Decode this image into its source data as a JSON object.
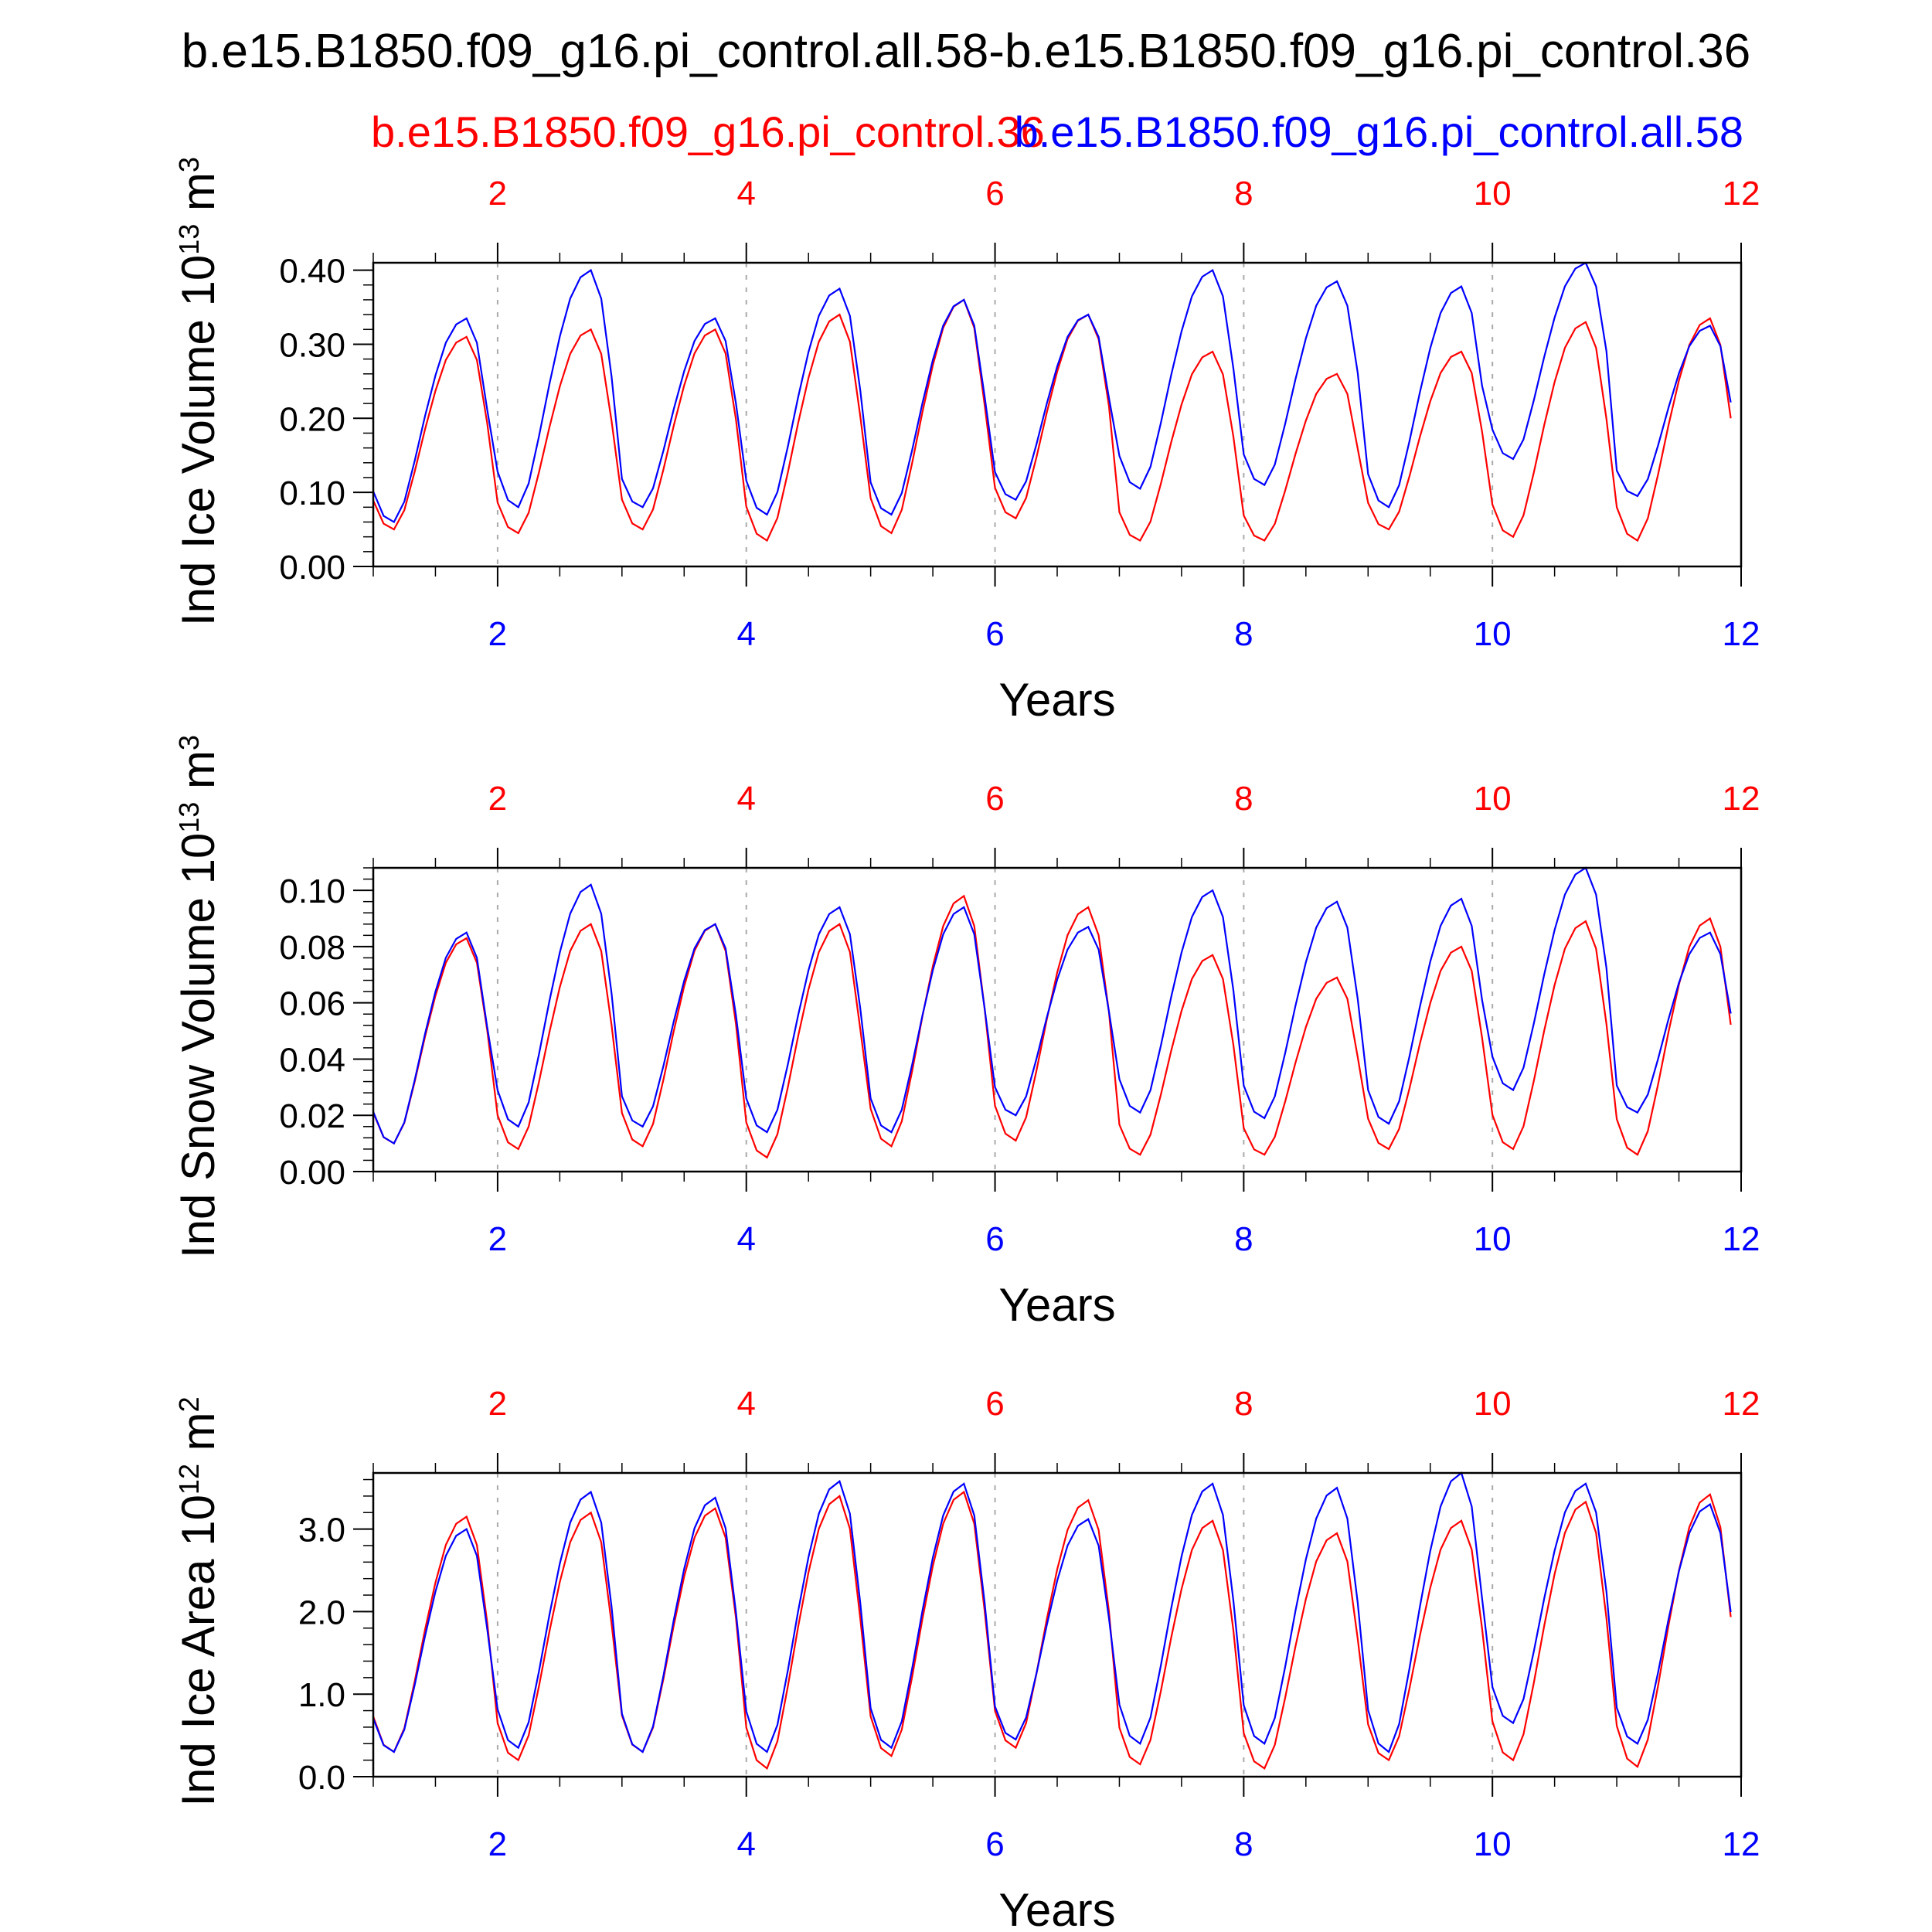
{
  "figure": {
    "title": "b.e15.B1850.f09_g16.pi_control.all.58-b.e15.B1850.f09_g16.pi_control.36",
    "legend_red": "b.e15.B1850.f09_g16.pi_control.36",
    "legend_blue": "b.e15.B1850.f09_g16.pi_control.all.58",
    "colors": {
      "red": "#ff0000",
      "blue": "#0000ff",
      "axis": "#000000",
      "grid": "#aaaaaa"
    }
  },
  "chart_data": [
    {
      "type": "line",
      "ylabel": "Ind Ice Volume 10",
      "ylabel_exp": "13",
      "ylabel_unit": " m",
      "ylabel_unit_exp": "3",
      "xlabel": "Years",
      "xlim": [
        1,
        12
      ],
      "ylim": [
        0,
        0.41
      ],
      "yticks": [
        "0.00",
        "0.10",
        "0.20",
        "0.30",
        "0.40"
      ],
      "ytick_values": [
        0,
        0.1,
        0.2,
        0.3,
        0.4
      ],
      "xticks_top": [
        "2",
        "4",
        "6",
        "8",
        "10",
        "12"
      ],
      "xticks_bottom": [
        "2",
        "4",
        "6",
        "8",
        "10",
        "12"
      ],
      "grid_x": [
        2,
        4,
        6,
        8,
        10
      ],
      "series": [
        {
          "color": "red",
          "amplitude": [
            0.31,
            0.32,
            0.32,
            0.34,
            0.36,
            0.34,
            0.29,
            0.26,
            0.29,
            0.33,
            0.335
          ],
          "minimum": [
            0.05,
            0.045,
            0.05,
            0.035,
            0.045,
            0.065,
            0.035,
            0.035,
            0.05,
            0.04,
            0.035
          ]
        },
        {
          "color": "blue",
          "amplitude": [
            0.335,
            0.4,
            0.335,
            0.375,
            0.36,
            0.34,
            0.4,
            0.385,
            0.378,
            0.41,
            0.325
          ],
          "minimum": [
            0.06,
            0.08,
            0.08,
            0.07,
            0.07,
            0.09,
            0.105,
            0.11,
            0.08,
            0.145,
            0.095
          ]
        }
      ]
    },
    {
      "type": "line",
      "ylabel": "Ind Snow Volume 10",
      "ylabel_exp": "13",
      "ylabel_unit": " m",
      "ylabel_unit_exp": "3",
      "xlabel": "Years",
      "xlim": [
        1,
        12
      ],
      "ylim": [
        0,
        0.108
      ],
      "yticks": [
        "0.00",
        "0.02",
        "0.04",
        "0.06",
        "0.08",
        "0.10"
      ],
      "ytick_values": [
        0,
        0.02,
        0.04,
        0.06,
        0.08,
        0.1
      ],
      "xticks_top": [
        "2",
        "4",
        "6",
        "8",
        "10",
        "12"
      ],
      "xticks_bottom": [
        "2",
        "4",
        "6",
        "8",
        "10",
        "12"
      ],
      "grid_x": [
        2,
        4,
        6,
        8,
        10
      ],
      "series": [
        {
          "color": "red",
          "amplitude": [
            0.083,
            0.088,
            0.088,
            0.088,
            0.098,
            0.094,
            0.077,
            0.069,
            0.08,
            0.089,
            0.09
          ],
          "minimum": [
            0.01,
            0.008,
            0.009,
            0.005,
            0.009,
            0.011,
            0.006,
            0.006,
            0.008,
            0.008,
            0.006
          ]
        },
        {
          "color": "blue",
          "amplitude": [
            0.085,
            0.102,
            0.088,
            0.094,
            0.094,
            0.087,
            0.1,
            0.096,
            0.097,
            0.108,
            0.085
          ],
          "minimum": [
            0.01,
            0.016,
            0.016,
            0.014,
            0.014,
            0.02,
            0.021,
            0.019,
            0.017,
            0.029,
            0.021
          ]
        }
      ]
    },
    {
      "type": "line",
      "ylabel": "Ind Ice Area 10",
      "ylabel_exp": "12",
      "ylabel_unit": " m",
      "ylabel_unit_exp": "2",
      "xlabel": "Years",
      "xlim": [
        1,
        12
      ],
      "ylim": [
        0,
        3.68
      ],
      "yticks": [
        "0.0",
        "1.0",
        "2.0",
        "3.0"
      ],
      "ytick_values": [
        0,
        1,
        2,
        3
      ],
      "xticks_top": [
        "2",
        "4",
        "6",
        "8",
        "10",
        "12"
      ],
      "xticks_bottom": [
        "2",
        "4",
        "6",
        "8",
        "10",
        "12"
      ],
      "grid_x": [
        2,
        4,
        6,
        8,
        10
      ],
      "series": [
        {
          "color": "red",
          "amplitude": [
            3.15,
            3.2,
            3.25,
            3.4,
            3.45,
            3.35,
            3.1,
            2.95,
            3.1,
            3.33,
            3.42
          ],
          "minimum": [
            0.3,
            0.2,
            0.3,
            0.1,
            0.25,
            0.35,
            0.15,
            0.1,
            0.2,
            0.2,
            0.12
          ]
        },
        {
          "color": "blue",
          "amplitude": [
            3.0,
            3.45,
            3.38,
            3.58,
            3.55,
            3.12,
            3.55,
            3.5,
            3.68,
            3.55,
            3.3
          ],
          "minimum": [
            0.3,
            0.35,
            0.3,
            0.3,
            0.35,
            0.45,
            0.4,
            0.4,
            0.3,
            0.65,
            0.4
          ]
        }
      ]
    }
  ]
}
